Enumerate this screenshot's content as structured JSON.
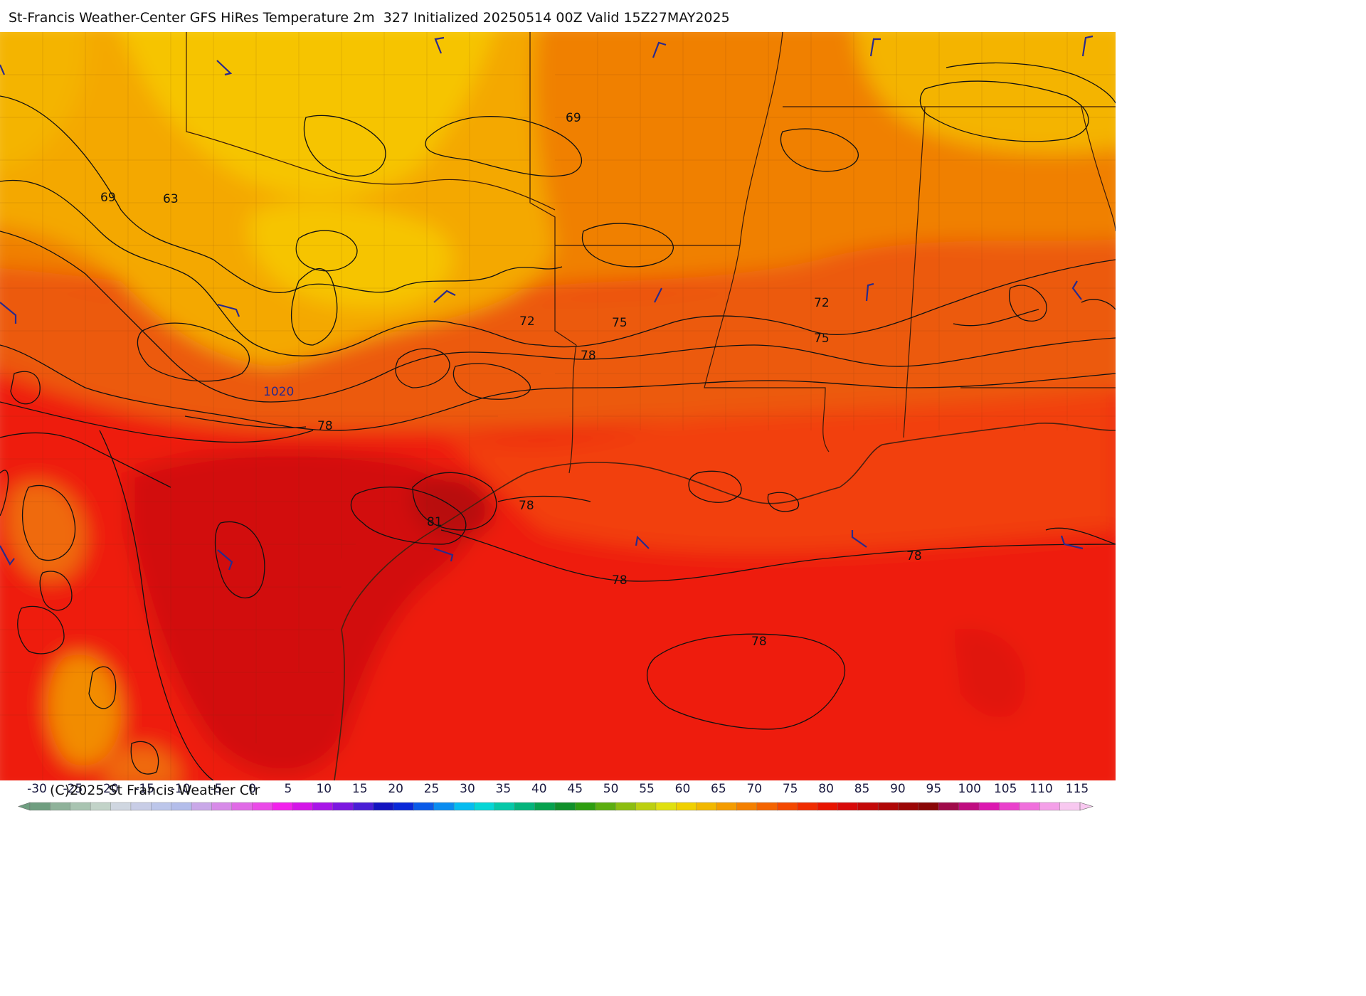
{
  "header": {
    "title": "St-Francis Weather-Center GFS HiRes Temperature 2m  327 Initialized 20250514 00Z Valid 15Z27MAY2025"
  },
  "map": {
    "contour_labels": [
      "69",
      "63",
      "69",
      "72",
      "75",
      "72",
      "75",
      "78",
      "1020",
      "78",
      "78",
      "81",
      "78",
      "78",
      "78"
    ],
    "palette": {
      "cool_yellow": "#f6c400",
      "gold": "#f4a800",
      "orange": "#f08000",
      "dark_orange": "#ec5a0a",
      "red_orange": "#f2400c",
      "red": "#ee1c0a",
      "deep_red": "#d20a0a",
      "maroon": "#b80808",
      "contour_line": "#111111",
      "wind_barb": "#2a2a8c"
    }
  },
  "legend": {
    "ticks": [
      "-30",
      "-25",
      "-20",
      "-15",
      "-10",
      "-5",
      "0",
      "5",
      "10",
      "15",
      "20",
      "25",
      "30",
      "35",
      "40",
      "45",
      "50",
      "55",
      "60",
      "65",
      "70",
      "75",
      "80",
      "85",
      "90",
      "95",
      "100",
      "105",
      "110",
      "115"
    ],
    "colors": [
      "#6f9e80",
      "#8fb29a",
      "#a9c4b1",
      "#c2d3c8",
      "#cfd6e0",
      "#c8cde6",
      "#bcc6ea",
      "#b3bdea",
      "#c9a8e8",
      "#d78be8",
      "#e06ae6",
      "#ea4ae8",
      "#f222ec",
      "#d416e8",
      "#a816e8",
      "#7c18e0",
      "#4a1ed6",
      "#1414c0",
      "#0a28d8",
      "#0a5ae8",
      "#0a8cf0",
      "#06bcf0",
      "#06d6d6",
      "#06c8a8",
      "#04b47c",
      "#06a24e",
      "#10902a",
      "#2e9e10",
      "#5cae10",
      "#8cbe10",
      "#bcd010",
      "#e0e010",
      "#f0d000",
      "#f2b800",
      "#f49c00",
      "#f48000",
      "#f46400",
      "#f44800",
      "#f02c00",
      "#e81400",
      "#d80a0a",
      "#c40808",
      "#b00606",
      "#9c0606",
      "#8a0606",
      "#a00a4a",
      "#c00c80",
      "#dc18b0",
      "#ea40cc",
      "#f070dc",
      "#f4a0e8",
      "#f8c8f0"
    ],
    "copyright": "(C)2025 St Francis Weather Ctr"
  }
}
